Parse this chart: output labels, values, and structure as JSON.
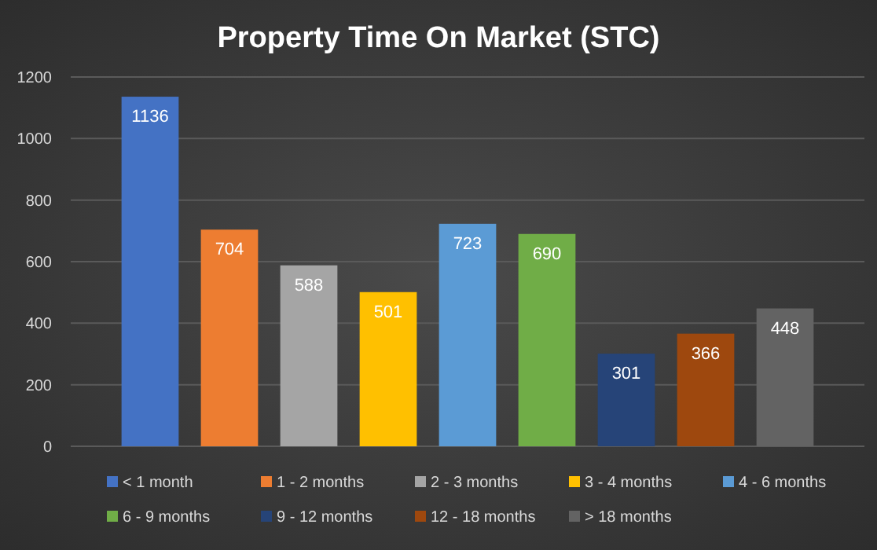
{
  "chart_data": {
    "type": "bar",
    "title": "Property Time On Market (STC)",
    "categories": [
      null
    ],
    "series": [
      {
        "name": "< 1 month",
        "color": "#4472c4",
        "values": [
          1136
        ]
      },
      {
        "name": "1 - 2 months",
        "color": "#ed7d31",
        "values": [
          704
        ]
      },
      {
        "name": "2 - 3 months",
        "color": "#a5a5a5",
        "values": [
          588
        ]
      },
      {
        "name": "3 - 4 months",
        "color": "#ffc000",
        "values": [
          501
        ]
      },
      {
        "name": "4 - 6 months",
        "color": "#5b9bd5",
        "values": [
          723
        ]
      },
      {
        "name": "6 - 9 months",
        "color": "#70ad47",
        "values": [
          690
        ]
      },
      {
        "name": "9 - 12 months",
        "color": "#264478",
        "values": [
          301
        ]
      },
      {
        "name": "12 - 18 months",
        "color": "#9e480e",
        "values": [
          366
        ]
      },
      {
        "name": "> 18 months",
        "color": "#636363",
        "values": [
          448
        ]
      }
    ],
    "ylim": [
      0,
      1200
    ],
    "yticks": [
      0,
      200,
      400,
      600,
      800,
      1000,
      1200
    ],
    "grid": "y",
    "legend": "bottom",
    "data_labels": true
  }
}
